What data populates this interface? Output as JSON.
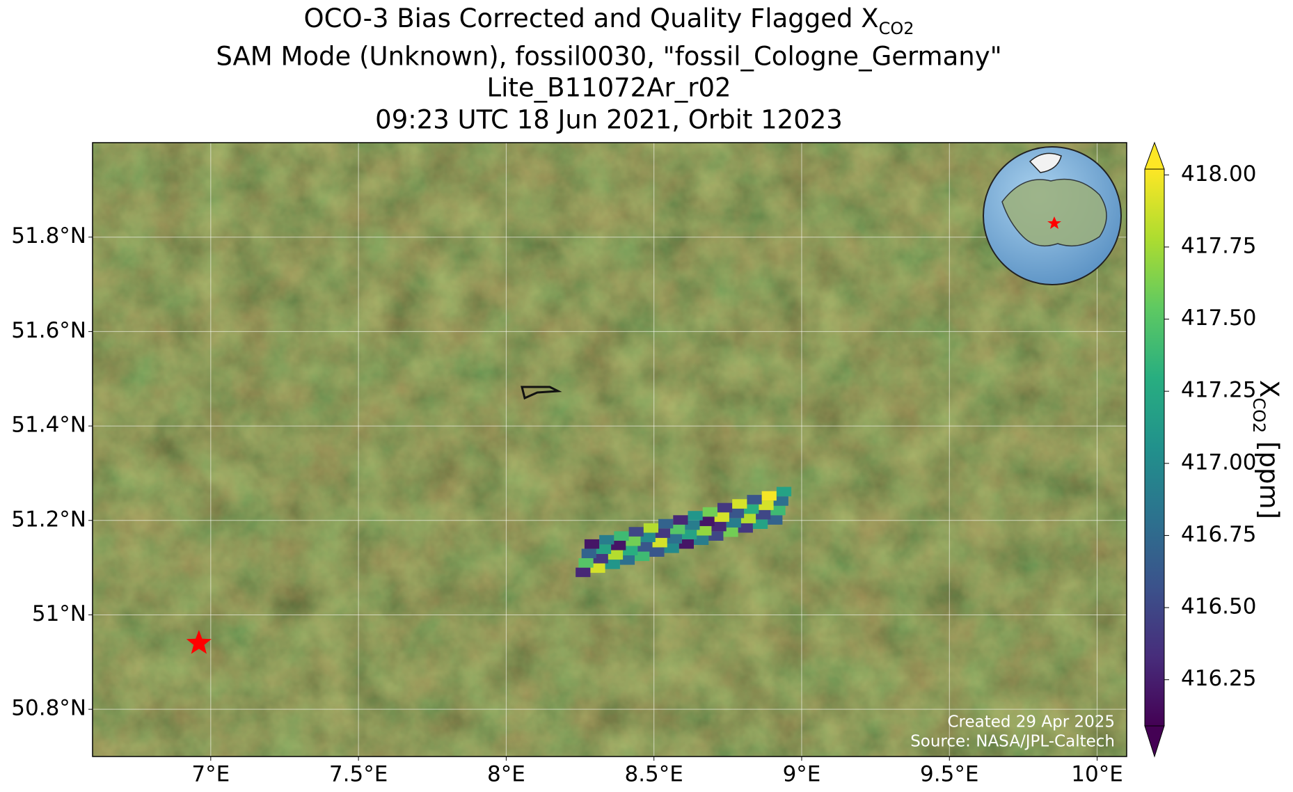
{
  "chart_data": {
    "type": "map",
    "title_lines": [
      "OCO-3 Bias Corrected and Quality Flagged X",
      "SAM Mode (Unknown), fossil0030, \"fossil_Cologne_Germany\"",
      "Lite_B11072Ar_r02",
      "09:23 UTC 18 Jun 2021, Orbit 12023"
    ],
    "title_subscript": "CO2",
    "xlim": [
      6.6,
      10.1
    ],
    "ylim": [
      50.7,
      52.0
    ],
    "xticks": [
      {
        "value": 7,
        "label": "7°E"
      },
      {
        "value": 7.5,
        "label": "7.5°E"
      },
      {
        "value": 8,
        "label": "8°E"
      },
      {
        "value": 8.5,
        "label": "8.5°E"
      },
      {
        "value": 9,
        "label": "9°E"
      },
      {
        "value": 9.5,
        "label": "9.5°E"
      },
      {
        "value": 10,
        "label": "10°E"
      }
    ],
    "yticks": [
      {
        "value": 50.8,
        "label": "50.8°N"
      },
      {
        "value": 51,
        "label": "51°N"
      },
      {
        "value": 51.2,
        "label": "51.2°N"
      },
      {
        "value": 51.4,
        "label": "51.4°N"
      },
      {
        "value": 51.6,
        "label": "51.6°N"
      },
      {
        "value": 51.8,
        "label": "51.8°N"
      }
    ],
    "grid": true,
    "cells": {
      "lon": [
        8.26,
        8.31,
        8.36,
        8.41,
        8.46,
        8.51,
        8.56,
        8.61,
        8.66,
        8.71,
        8.76,
        8.81,
        8.86,
        8.91,
        8.27,
        8.32,
        8.37,
        8.42,
        8.47,
        8.52,
        8.57,
        8.62,
        8.67,
        8.72,
        8.77,
        8.82,
        8.87,
        8.92,
        8.28,
        8.33,
        8.38,
        8.43,
        8.48,
        8.53,
        8.58,
        8.63,
        8.68,
        8.73,
        8.78,
        8.83,
        8.88,
        8.93,
        8.29,
        8.34,
        8.39,
        8.44,
        8.49,
        8.54,
        8.59,
        8.64,
        8.69,
        8.74,
        8.79,
        8.84,
        8.89,
        8.94
      ],
      "lat": [
        51.09,
        51.099,
        51.107,
        51.116,
        51.124,
        51.133,
        51.141,
        51.15,
        51.158,
        51.167,
        51.175,
        51.184,
        51.192,
        51.201,
        51.11,
        51.119,
        51.127,
        51.136,
        51.144,
        51.153,
        51.161,
        51.17,
        51.178,
        51.187,
        51.195,
        51.204,
        51.212,
        51.221,
        51.13,
        51.139,
        51.147,
        51.156,
        51.164,
        51.173,
        51.181,
        51.19,
        51.198,
        51.207,
        51.215,
        51.224,
        51.232,
        51.241,
        51.15,
        51.159,
        51.167,
        51.176,
        51.184,
        51.193,
        51.201,
        51.21,
        51.218,
        51.227,
        51.235,
        51.244,
        51.252,
        51.261
      ],
      "values": [
        416.3,
        417.9,
        417.1,
        416.8,
        417.4,
        416.6,
        417.0,
        416.2,
        416.9,
        416.5,
        417.6,
        416.4,
        417.2,
        416.7,
        417.5,
        416.4,
        417.8,
        417.3,
        416.6,
        417.9,
        416.8,
        417.2,
        417.7,
        416.3,
        416.9,
        417.8,
        416.5,
        417.4,
        416.7,
        417.2,
        416.2,
        417.6,
        417.0,
        416.4,
        417.5,
        416.9,
        416.2,
        417.9,
        416.6,
        417.3,
        417.9,
        416.8,
        416.2,
        416.9,
        417.4,
        416.5,
        417.8,
        416.7,
        416.3,
        417.1,
        417.6,
        416.4,
        417.9,
        416.6,
        418.0,
        417.2
      ]
    },
    "colormap": "viridis",
    "clim": [
      416.09,
      418.02
    ],
    "extend": "both",
    "colorbar_ticks": [
      416.25,
      {
        "value": 416.5,
        "label": "416.50"
      },
      416.75,
      {
        "value": 417,
        "label": "417.00"
      },
      417.25,
      {
        "value": 417.5,
        "label": "417.50"
      },
      417.75,
      {
        "value": 418,
        "label": "418.00"
      }
    ],
    "colorbar_label": {
      "text": "X",
      "subscript": "CO2",
      "suffix": " [ppm]"
    },
    "target": {
      "lon": 6.96,
      "lat": 50.94,
      "color": "#ff0000"
    },
    "annotations": [
      "Created 29 Apr 2025",
      "Source: NASA/JPL-Caltech"
    ]
  }
}
